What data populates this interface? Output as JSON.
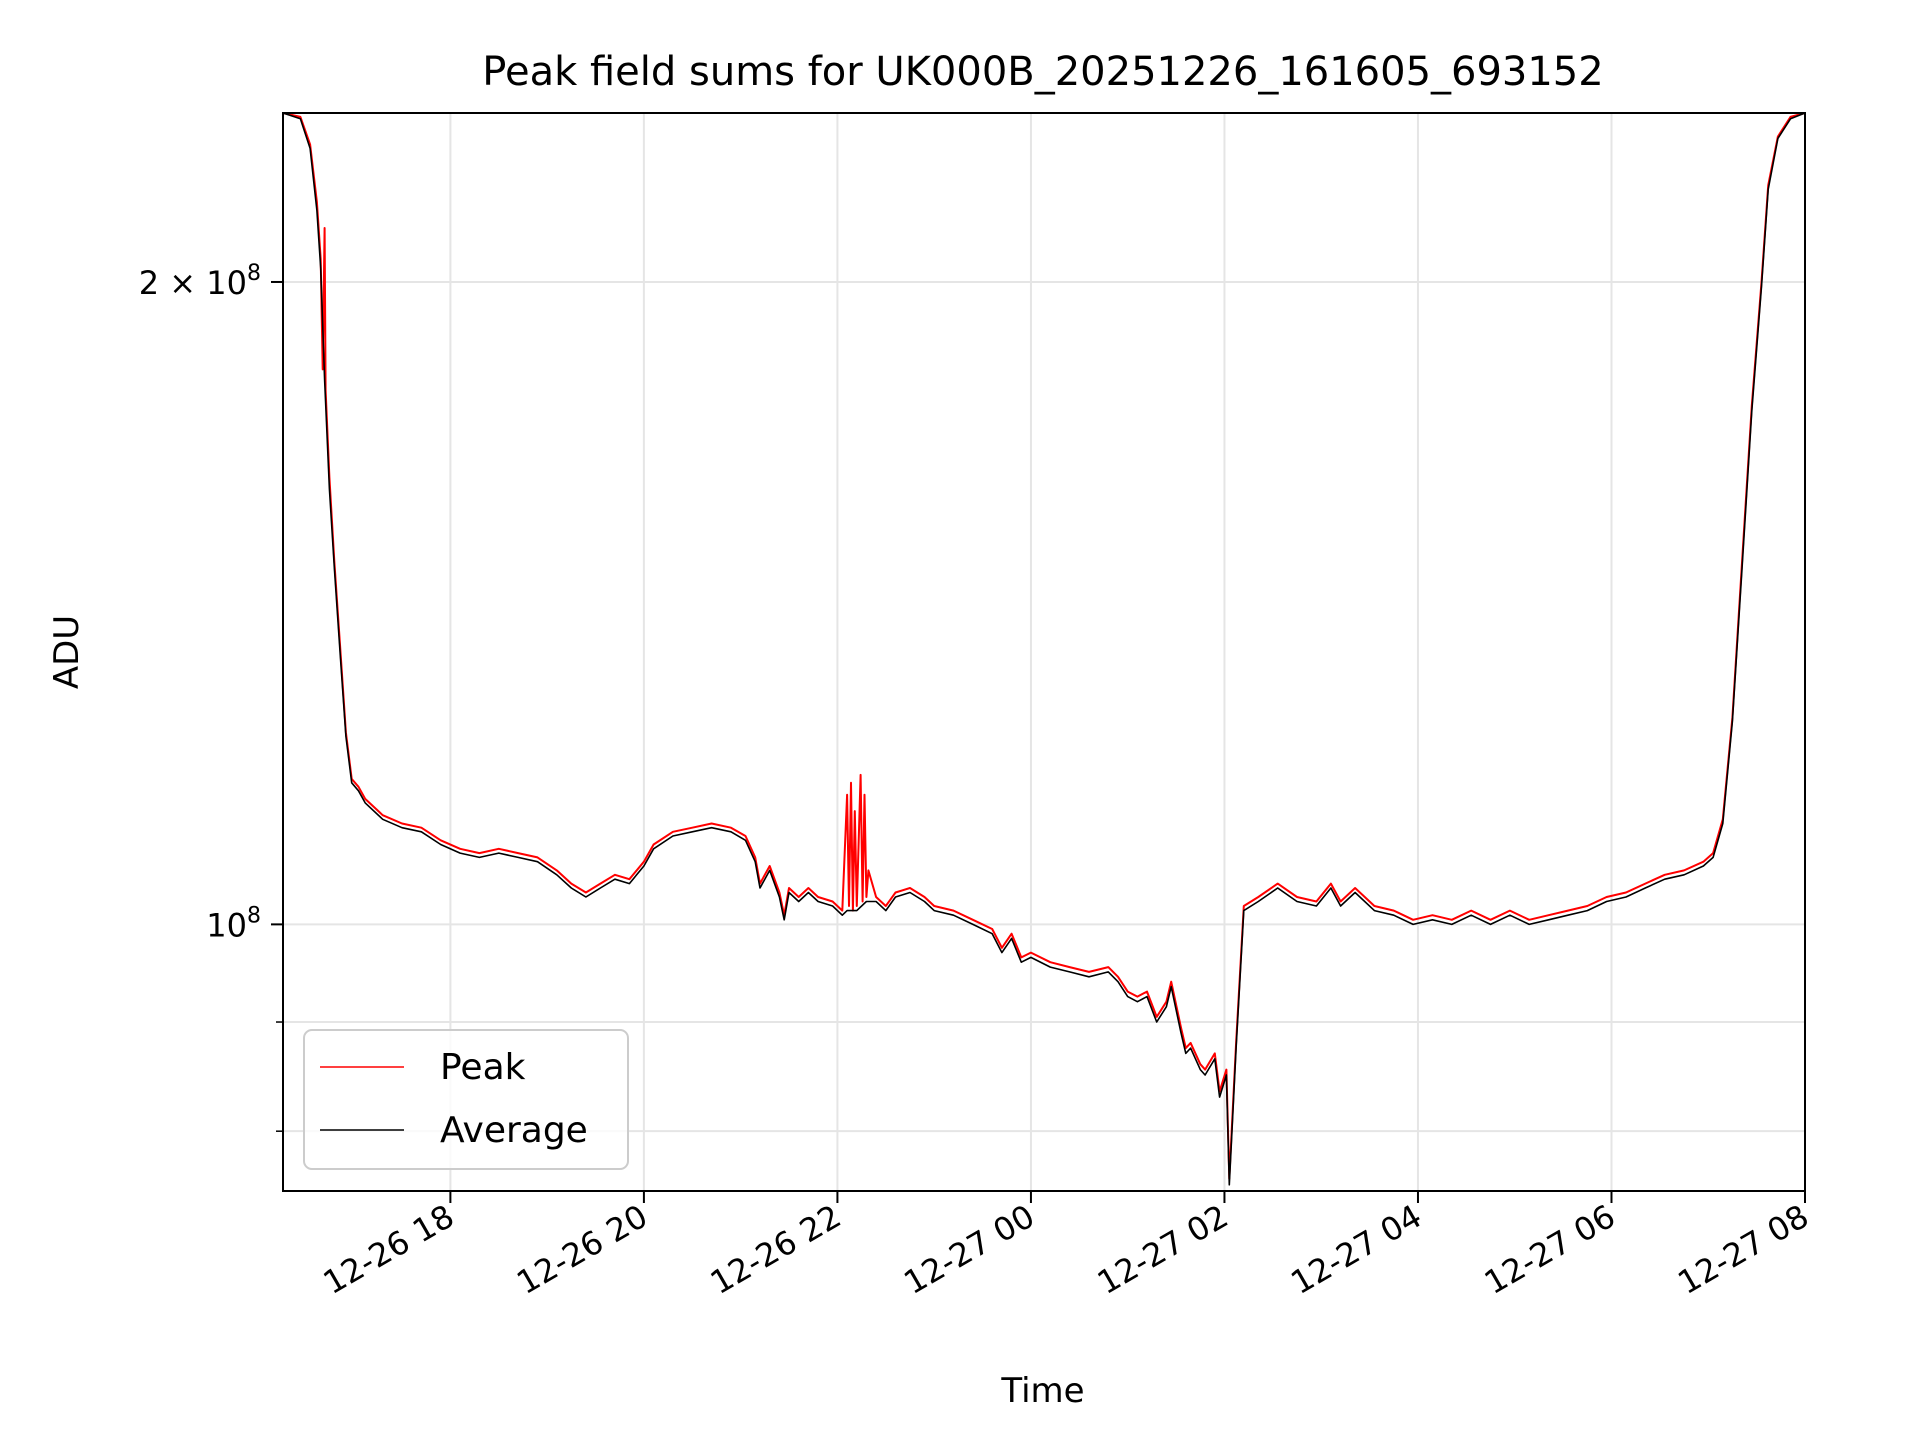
{
  "chart_data": {
    "type": "line",
    "title": "Peak field sums for UK000B_20251226_161605_693152",
    "xlabel": "Time",
    "ylabel": "ADU",
    "y_scale": "log",
    "grid": true,
    "legend_placement": "lower-left",
    "x_unit": "hours since 2025-12-26 00:00",
    "xlim": [
      16.27,
      32.0
    ],
    "ylim": [
      75000000,
      240000000
    ],
    "x_ticks": [
      {
        "value": 18,
        "label": "12-26 18"
      },
      {
        "value": 20,
        "label": "12-26 20"
      },
      {
        "value": 22,
        "label": "12-26 22"
      },
      {
        "value": 24,
        "label": "12-27 00"
      },
      {
        "value": 26,
        "label": "12-27 02"
      },
      {
        "value": 28,
        "label": "12-27 04"
      },
      {
        "value": 30,
        "label": "12-27 06"
      },
      {
        "value": 32,
        "label": "12-27 08"
      }
    ],
    "y_major_ticks": [
      {
        "value": 100000000,
        "base": "10",
        "mantissa": "",
        "exp": "8"
      },
      {
        "value": 200000000,
        "base": "10",
        "mantissa": "2 × ",
        "exp": "8"
      }
    ],
    "y_minor_ticks": [
      80000000,
      90000000
    ],
    "series": [
      {
        "name": "Peak",
        "color": "#ff0000",
        "points": [
          [
            16.27,
            240000000
          ],
          [
            16.45,
            239000000
          ],
          [
            16.55,
            232000000
          ],
          [
            16.62,
            218000000
          ],
          [
            16.66,
            205000000
          ],
          [
            16.68,
            182000000
          ],
          [
            16.7,
            212000000
          ],
          [
            16.71,
            178000000
          ],
          [
            16.75,
            162000000
          ],
          [
            16.8,
            148000000
          ],
          [
            16.86,
            135000000
          ],
          [
            16.92,
            123000000
          ],
          [
            16.98,
            117000000
          ],
          [
            17.05,
            116000000
          ],
          [
            17.12,
            114500000
          ],
          [
            17.3,
            112500000
          ],
          [
            17.5,
            111500000
          ],
          [
            17.7,
            111000000
          ],
          [
            17.9,
            109500000
          ],
          [
            18.1,
            108500000
          ],
          [
            18.3,
            108000000
          ],
          [
            18.5,
            108500000
          ],
          [
            18.7,
            108000000
          ],
          [
            18.9,
            107500000
          ],
          [
            19.1,
            106000000
          ],
          [
            19.25,
            104500000
          ],
          [
            19.4,
            103500000
          ],
          [
            19.55,
            104500000
          ],
          [
            19.7,
            105500000
          ],
          [
            19.85,
            105000000
          ],
          [
            20.0,
            107000000
          ],
          [
            20.1,
            109000000
          ],
          [
            20.3,
            110500000
          ],
          [
            20.5,
            111000000
          ],
          [
            20.7,
            111500000
          ],
          [
            20.9,
            111000000
          ],
          [
            21.05,
            110000000
          ],
          [
            21.15,
            107500000
          ],
          [
            21.2,
            104500000
          ],
          [
            21.3,
            106500000
          ],
          [
            21.4,
            103500000
          ],
          [
            21.45,
            101000000
          ],
          [
            21.5,
            104000000
          ],
          [
            21.6,
            103000000
          ],
          [
            21.7,
            104000000
          ],
          [
            21.8,
            103000000
          ],
          [
            21.95,
            102500000
          ],
          [
            22.05,
            101500000
          ],
          [
            22.1,
            115000000
          ],
          [
            22.12,
            102000000
          ],
          [
            22.14,
            116500000
          ],
          [
            22.16,
            101500000
          ],
          [
            22.18,
            113000000
          ],
          [
            22.2,
            102000000
          ],
          [
            22.24,
            117500000
          ],
          [
            22.26,
            102500000
          ],
          [
            22.28,
            115000000
          ],
          [
            22.3,
            103000000
          ],
          [
            22.32,
            106000000
          ],
          [
            22.4,
            103000000
          ],
          [
            22.5,
            102000000
          ],
          [
            22.6,
            103500000
          ],
          [
            22.75,
            104000000
          ],
          [
            22.9,
            103000000
          ],
          [
            23.0,
            102000000
          ],
          [
            23.2,
            101500000
          ],
          [
            23.4,
            100500000
          ],
          [
            23.6,
            99500000
          ],
          [
            23.7,
            97500000
          ],
          [
            23.8,
            99000000
          ],
          [
            23.9,
            96500000
          ],
          [
            24.0,
            97000000
          ],
          [
            24.2,
            96000000
          ],
          [
            24.4,
            95500000
          ],
          [
            24.6,
            95000000
          ],
          [
            24.8,
            95500000
          ],
          [
            24.9,
            94500000
          ],
          [
            25.0,
            93000000
          ],
          [
            25.1,
            92500000
          ],
          [
            25.2,
            93000000
          ],
          [
            25.3,
            90500000
          ],
          [
            25.4,
            92000000
          ],
          [
            25.45,
            94000000
          ],
          [
            25.55,
            89500000
          ],
          [
            25.6,
            87500000
          ],
          [
            25.65,
            88000000
          ],
          [
            25.75,
            86000000
          ],
          [
            25.8,
            85500000
          ],
          [
            25.9,
            87000000
          ],
          [
            25.95,
            83500000
          ],
          [
            26.02,
            85500000
          ],
          [
            26.05,
            76000000
          ],
          [
            26.12,
            88000000
          ],
          [
            26.2,
            102000000
          ],
          [
            26.35,
            103000000
          ],
          [
            26.55,
            104500000
          ],
          [
            26.75,
            103000000
          ],
          [
            26.95,
            102500000
          ],
          [
            27.1,
            104500000
          ],
          [
            27.2,
            102500000
          ],
          [
            27.35,
            104000000
          ],
          [
            27.55,
            102000000
          ],
          [
            27.75,
            101500000
          ],
          [
            27.95,
            100500000
          ],
          [
            28.15,
            101000000
          ],
          [
            28.35,
            100500000
          ],
          [
            28.55,
            101500000
          ],
          [
            28.75,
            100500000
          ],
          [
            28.95,
            101500000
          ],
          [
            29.15,
            100500000
          ],
          [
            29.35,
            101000000
          ],
          [
            29.55,
            101500000
          ],
          [
            29.75,
            102000000
          ],
          [
            29.95,
            103000000
          ],
          [
            30.15,
            103500000
          ],
          [
            30.35,
            104500000
          ],
          [
            30.55,
            105500000
          ],
          [
            30.75,
            106000000
          ],
          [
            30.95,
            107000000
          ],
          [
            31.05,
            108000000
          ],
          [
            31.15,
            112000000
          ],
          [
            31.25,
            125000000
          ],
          [
            31.35,
            148000000
          ],
          [
            31.45,
            175000000
          ],
          [
            31.55,
            200000000
          ],
          [
            31.62,
            222000000
          ],
          [
            31.72,
            234000000
          ],
          [
            31.85,
            239000000
          ],
          [
            32.0,
            240000000
          ]
        ]
      },
      {
        "name": "Average",
        "color": "#000000",
        "points": [
          [
            16.27,
            240000000
          ],
          [
            16.45,
            238500000
          ],
          [
            16.55,
            231000000
          ],
          [
            16.62,
            216000000
          ],
          [
            16.66,
            203000000
          ],
          [
            16.7,
            180000000
          ],
          [
            16.75,
            160000000
          ],
          [
            16.8,
            147000000
          ],
          [
            16.86,
            134000000
          ],
          [
            16.92,
            122500000
          ],
          [
            16.98,
            116500000
          ],
          [
            17.05,
            115500000
          ],
          [
            17.12,
            114000000
          ],
          [
            17.3,
            112000000
          ],
          [
            17.5,
            111000000
          ],
          [
            17.7,
            110500000
          ],
          [
            17.9,
            109000000
          ],
          [
            18.1,
            108000000
          ],
          [
            18.3,
            107500000
          ],
          [
            18.5,
            108000000
          ],
          [
            18.7,
            107500000
          ],
          [
            18.9,
            107000000
          ],
          [
            19.1,
            105500000
          ],
          [
            19.25,
            104000000
          ],
          [
            19.4,
            103000000
          ],
          [
            19.55,
            104000000
          ],
          [
            19.7,
            105000000
          ],
          [
            19.85,
            104500000
          ],
          [
            20.0,
            106500000
          ],
          [
            20.1,
            108500000
          ],
          [
            20.3,
            110000000
          ],
          [
            20.5,
            110500000
          ],
          [
            20.7,
            111000000
          ],
          [
            20.9,
            110500000
          ],
          [
            21.05,
            109500000
          ],
          [
            21.15,
            107000000
          ],
          [
            21.2,
            104000000
          ],
          [
            21.3,
            106000000
          ],
          [
            21.4,
            103000000
          ],
          [
            21.45,
            100500000
          ],
          [
            21.5,
            103500000
          ],
          [
            21.6,
            102500000
          ],
          [
            21.7,
            103500000
          ],
          [
            21.8,
            102500000
          ],
          [
            21.95,
            102000000
          ],
          [
            22.05,
            101000000
          ],
          [
            22.1,
            101500000
          ],
          [
            22.2,
            101500000
          ],
          [
            22.3,
            102500000
          ],
          [
            22.4,
            102500000
          ],
          [
            22.5,
            101500000
          ],
          [
            22.6,
            103000000
          ],
          [
            22.75,
            103500000
          ],
          [
            22.9,
            102500000
          ],
          [
            23.0,
            101500000
          ],
          [
            23.2,
            101000000
          ],
          [
            23.4,
            100000000
          ],
          [
            23.6,
            99000000
          ],
          [
            23.7,
            97000000
          ],
          [
            23.8,
            98500000
          ],
          [
            23.9,
            96000000
          ],
          [
            24.0,
            96500000
          ],
          [
            24.2,
            95500000
          ],
          [
            24.4,
            95000000
          ],
          [
            24.6,
            94500000
          ],
          [
            24.8,
            95000000
          ],
          [
            24.9,
            94000000
          ],
          [
            25.0,
            92500000
          ],
          [
            25.1,
            92000000
          ],
          [
            25.2,
            92500000
          ],
          [
            25.3,
            90000000
          ],
          [
            25.4,
            91500000
          ],
          [
            25.45,
            93500000
          ],
          [
            25.55,
            89000000
          ],
          [
            25.6,
            87000000
          ],
          [
            25.65,
            87500000
          ],
          [
            25.75,
            85500000
          ],
          [
            25.8,
            85000000
          ],
          [
            25.9,
            86500000
          ],
          [
            25.95,
            83000000
          ],
          [
            26.02,
            85000000
          ],
          [
            26.05,
            75500000
          ],
          [
            26.12,
            87500000
          ],
          [
            26.2,
            101500000
          ],
          [
            26.35,
            102500000
          ],
          [
            26.55,
            104000000
          ],
          [
            26.75,
            102500000
          ],
          [
            26.95,
            102000000
          ],
          [
            27.1,
            104000000
          ],
          [
            27.2,
            102000000
          ],
          [
            27.35,
            103500000
          ],
          [
            27.55,
            101500000
          ],
          [
            27.75,
            101000000
          ],
          [
            27.95,
            100000000
          ],
          [
            28.15,
            100500000
          ],
          [
            28.35,
            100000000
          ],
          [
            28.55,
            101000000
          ],
          [
            28.75,
            100000000
          ],
          [
            28.95,
            101000000
          ],
          [
            29.15,
            100000000
          ],
          [
            29.35,
            100500000
          ],
          [
            29.55,
            101000000
          ],
          [
            29.75,
            101500000
          ],
          [
            29.95,
            102500000
          ],
          [
            30.15,
            103000000
          ],
          [
            30.35,
            104000000
          ],
          [
            30.55,
            105000000
          ],
          [
            30.75,
            105500000
          ],
          [
            30.95,
            106500000
          ],
          [
            31.05,
            107500000
          ],
          [
            31.15,
            111500000
          ],
          [
            31.25,
            124500000
          ],
          [
            31.35,
            147000000
          ],
          [
            31.45,
            174000000
          ],
          [
            31.55,
            199000000
          ],
          [
            31.62,
            221000000
          ],
          [
            31.72,
            233500000
          ],
          [
            31.85,
            238500000
          ],
          [
            32.0,
            240000000
          ]
        ]
      }
    ],
    "legend": [
      {
        "label": "Peak",
        "color": "#ff0000"
      },
      {
        "label": "Average",
        "color": "#000000"
      }
    ]
  }
}
